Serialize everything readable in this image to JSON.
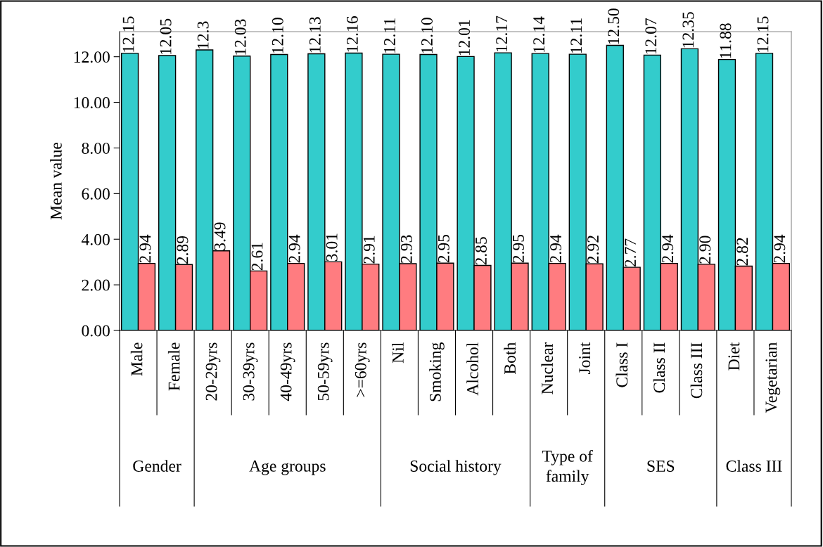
{
  "chart_data": {
    "type": "bar",
    "ylabel": "Mean value",
    "categories": [
      "Male",
      "Female",
      "20-29yrs",
      "30-39yrs",
      "40-49yrs",
      "50-59yrs",
      ">=60yrs",
      "Nil",
      "Smoking",
      "Alcohol",
      "Both",
      "Nuclear",
      "Joint",
      "Class I",
      "Class II",
      "Class III",
      "Diet",
      "Vegetarian"
    ],
    "series": [
      {
        "color": "#33cccc",
        "values": [
          12.15,
          12.05,
          12.3,
          12.03,
          12.1,
          12.13,
          12.16,
          12.11,
          12.1,
          12.01,
          12.17,
          12.14,
          12.11,
          12.5,
          12.07,
          12.35,
          11.88,
          12.15
        ],
        "value_labels": [
          "12.15",
          "12.05",
          "12.3",
          "12.03",
          "12.10",
          "12.13",
          "12.16",
          "12.11",
          "12.10",
          "12.01",
          "12.17",
          "12.14",
          "12.11",
          "12.50",
          "12.07",
          "12.35",
          "11.88",
          "12.15"
        ]
      },
      {
        "color": "#ff7c80",
        "values": [
          2.94,
          2.89,
          3.49,
          2.61,
          2.94,
          3.01,
          2.91,
          2.93,
          2.95,
          2.85,
          2.95,
          2.94,
          2.92,
          2.77,
          2.94,
          2.9,
          2.82,
          2.94
        ],
        "value_labels": [
          "2.94",
          "2.89",
          "3.49",
          "2.61",
          "2.94",
          "3.01",
          "2.91",
          "2.93",
          "2.95",
          "2.85",
          "2.95",
          "2.94",
          "2.92",
          "2.77",
          "2.94",
          "2.90",
          "2.82",
          "2.94"
        ]
      }
    ],
    "ylim": [
      0,
      13.1
    ],
    "yticks": [
      {
        "value": 0,
        "label": "0.00"
      },
      {
        "value": 2,
        "label": "2.00"
      },
      {
        "value": 4,
        "label": "4.00"
      },
      {
        "value": 6,
        "label": "6.00"
      },
      {
        "value": 8,
        "label": "8.00"
      },
      {
        "value": 10,
        "label": "10.00"
      },
      {
        "value": 12,
        "label": "12.00"
      }
    ],
    "grid": false,
    "annotations": [
      "Gender",
      "Age groups",
      "Social history",
      "Type of\nfamily",
      "SES",
      "Class III"
    ]
  }
}
